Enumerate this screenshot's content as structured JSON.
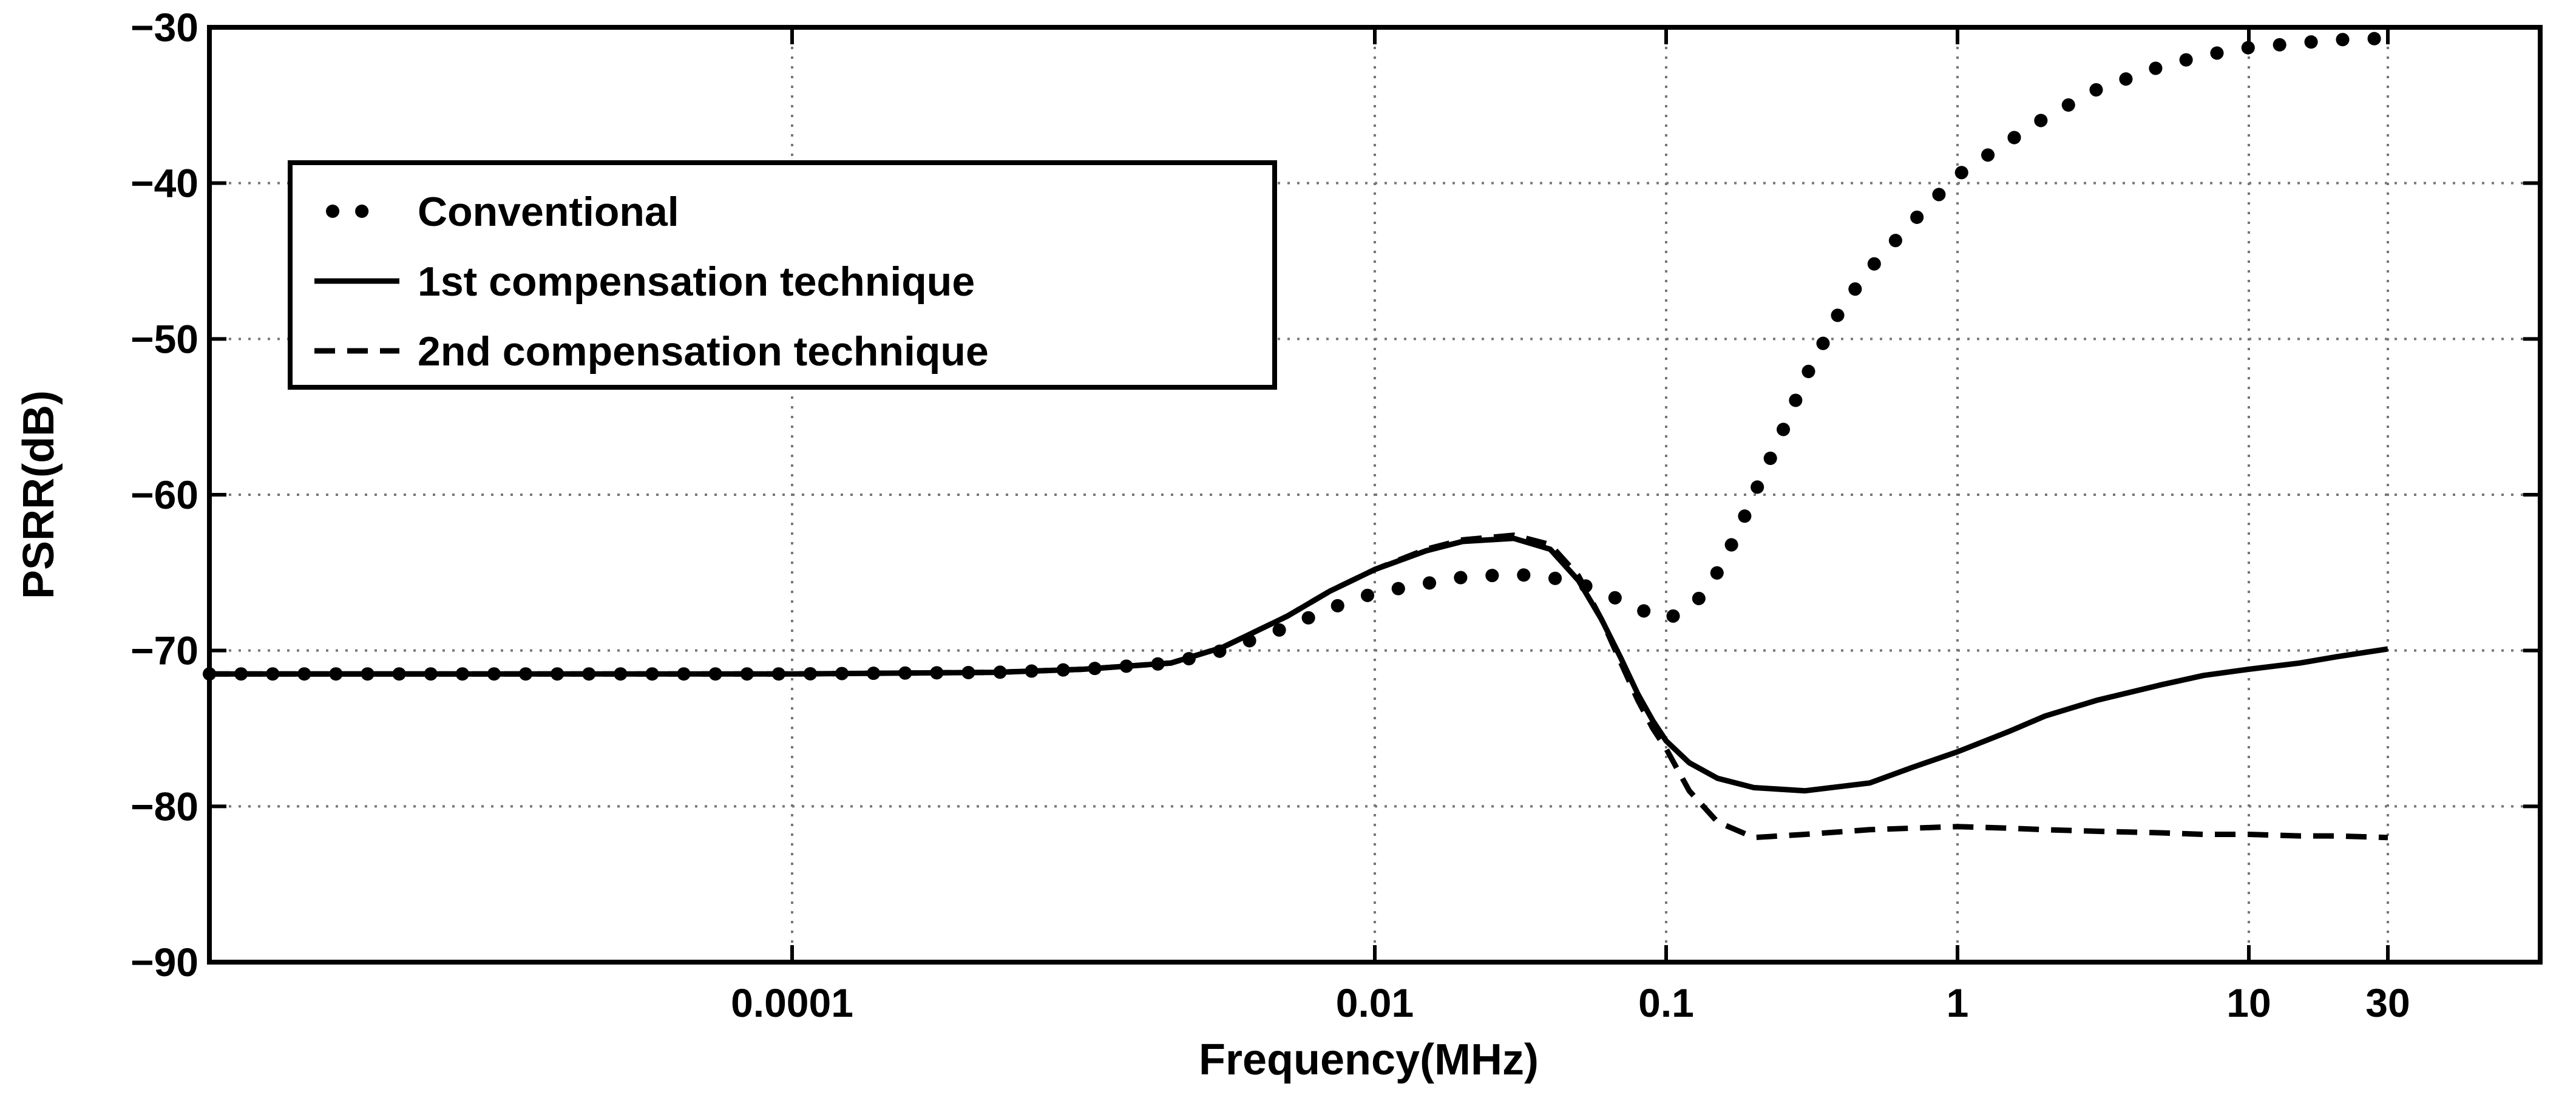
{
  "chart_data": {
    "type": "line",
    "title": "",
    "xlabel": "Frequency(MHz)",
    "ylabel": "PSRR(dB)",
    "xscale": "log",
    "xlim": [
      1e-06,
      100
    ],
    "ylim": [
      -90,
      -30
    ],
    "grid": true,
    "legend_position": "top-left",
    "x_ticks": [
      {
        "value": 0.0001,
        "label": "0.0001"
      },
      {
        "value": 0.01,
        "label": "0.01"
      },
      {
        "value": 0.1,
        "label": "0.1"
      },
      {
        "value": 1,
        "label": "1"
      },
      {
        "value": 10,
        "label": "10"
      },
      {
        "value": 30,
        "label": "30"
      }
    ],
    "y_ticks": [
      {
        "value": -30,
        "label": "−30"
      },
      {
        "value": -40,
        "label": "−40"
      },
      {
        "value": -50,
        "label": "−50"
      },
      {
        "value": -60,
        "label": "−60"
      },
      {
        "value": -70,
        "label": "−70"
      },
      {
        "value": -80,
        "label": "−80"
      },
      {
        "value": -90,
        "label": "−90"
      }
    ],
    "series": [
      {
        "name": "Conventional",
        "style": "dotted",
        "x": [
          1e-06,
          1e-05,
          0.0001,
          0.0005,
          0.001,
          0.002,
          0.003,
          0.005,
          0.007,
          0.01,
          0.015,
          0.02,
          0.03,
          0.04,
          0.05,
          0.06,
          0.07,
          0.08,
          0.09,
          0.1,
          0.12,
          0.14,
          0.16,
          0.18,
          0.2,
          0.25,
          0.3,
          0.4,
          0.5,
          0.7,
          1,
          1.5,
          2,
          3,
          5,
          7,
          10,
          15,
          20,
          30
        ],
        "y": [
          -71.5,
          -71.5,
          -71.5,
          -71.4,
          -71.2,
          -70.8,
          -70.0,
          -68.5,
          -67.3,
          -66.3,
          -65.7,
          -65.3,
          -65.1,
          -65.3,
          -65.7,
          -66.2,
          -66.8,
          -67.3,
          -67.7,
          -68.0,
          -67.3,
          -66.0,
          -64.0,
          -62.0,
          -60.0,
          -56.0,
          -52.5,
          -48.0,
          -45.5,
          -42.5,
          -39.5,
          -37.3,
          -35.8,
          -34.0,
          -32.5,
          -31.8,
          -31.3,
          -31.0,
          -30.8,
          -30.7
        ]
      },
      {
        "name": "1st compensation technique",
        "style": "solid",
        "x": [
          1e-06,
          1e-05,
          0.0001,
          0.0005,
          0.001,
          0.002,
          0.003,
          0.005,
          0.007,
          0.01,
          0.015,
          0.02,
          0.03,
          0.04,
          0.05,
          0.06,
          0.07,
          0.08,
          0.09,
          0.1,
          0.12,
          0.15,
          0.2,
          0.3,
          0.5,
          0.7,
          1,
          1.5,
          2,
          3,
          5,
          7,
          10,
          15,
          20,
          30
        ],
        "y": [
          -71.5,
          -71.5,
          -71.5,
          -71.4,
          -71.2,
          -70.8,
          -69.8,
          -67.8,
          -66.2,
          -64.8,
          -63.6,
          -63.0,
          -62.8,
          -63.5,
          -65.5,
          -68.0,
          -70.5,
          -72.8,
          -74.5,
          -75.8,
          -77.2,
          -78.2,
          -78.8,
          -79.0,
          -78.5,
          -77.5,
          -76.5,
          -75.2,
          -74.2,
          -73.2,
          -72.2,
          -71.6,
          -71.2,
          -70.8,
          -70.4,
          -69.9
        ]
      },
      {
        "name": "2nd compensation technique",
        "style": "dashed",
        "x": [
          1e-06,
          1e-05,
          0.0001,
          0.0005,
          0.001,
          0.002,
          0.003,
          0.005,
          0.007,
          0.01,
          0.015,
          0.02,
          0.03,
          0.04,
          0.05,
          0.06,
          0.07,
          0.08,
          0.09,
          0.1,
          0.12,
          0.15,
          0.2,
          0.3,
          0.5,
          0.7,
          1,
          1.5,
          2,
          3,
          5,
          7,
          10,
          15,
          20,
          30
        ],
        "y": [
          -71.5,
          -71.5,
          -71.5,
          -71.4,
          -71.2,
          -70.8,
          -69.8,
          -67.8,
          -66.2,
          -64.8,
          -63.5,
          -62.9,
          -62.6,
          -63.2,
          -65.2,
          -68.0,
          -70.8,
          -73.2,
          -75.0,
          -76.3,
          -79.0,
          -81.0,
          -82.0,
          -81.8,
          -81.5,
          -81.4,
          -81.3,
          -81.4,
          -81.5,
          -81.6,
          -81.7,
          -81.8,
          -81.8,
          -81.9,
          -81.9,
          -82.0
        ]
      }
    ]
  }
}
